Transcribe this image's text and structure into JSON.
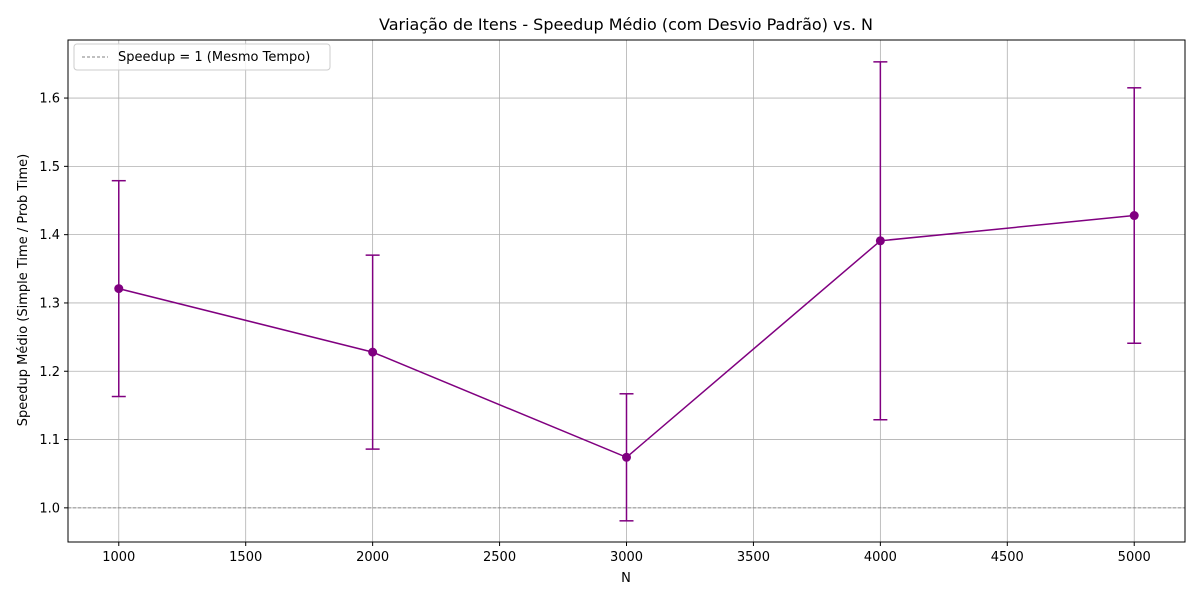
{
  "chart_data": {
    "type": "line",
    "title": "Variação de Itens - Speedup Médio (com Desvio Padrão) vs. N",
    "xlabel": "N",
    "ylabel": "Speedup Médio (Simple Time / Prob Time)",
    "xlim": [
      800,
      5200
    ],
    "ylim": [
      0.95,
      1.685
    ],
    "xticks": [
      1000,
      1500,
      2000,
      2500,
      3000,
      3500,
      4000,
      4500,
      5000
    ],
    "yticks": [
      1.0,
      1.1,
      1.2,
      1.3,
      1.4,
      1.5,
      1.6
    ],
    "xtick_labels": [
      "1000",
      "1500",
      "2000",
      "2500",
      "3000",
      "3500",
      "4000",
      "4500",
      "5000"
    ],
    "ytick_labels": [
      "1.0",
      "1.1",
      "1.2",
      "1.3",
      "1.4",
      "1.5",
      "1.6"
    ],
    "grid": true,
    "legend_position": "top-left",
    "series": [
      {
        "x": [
          1000,
          2000,
          3000,
          4000,
          5000
        ],
        "values": [
          1.321,
          1.228,
          1.074,
          1.391,
          1.428
        ],
        "error": [
          0.158,
          0.142,
          0.093,
          0.262,
          0.187
        ],
        "color": "#800080"
      }
    ],
    "reference_lines": [
      {
        "y": 1.0,
        "label": "Speedup = 1 (Mesmo Tempo)",
        "color": "#808080",
        "style": "dashed"
      }
    ]
  }
}
